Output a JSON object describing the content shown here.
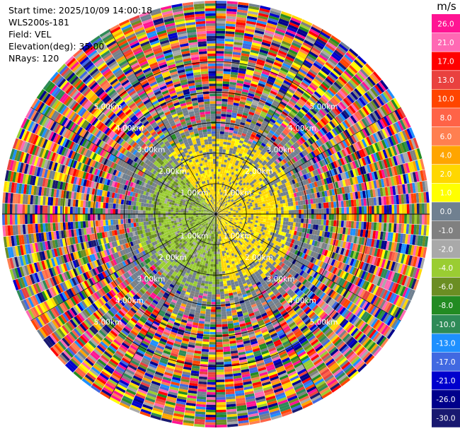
{
  "header": {
    "start_time": "Start time: 2025/10/09 14:00:18",
    "instrument": "WLS200s-181",
    "field": "Field: VEL",
    "elevation": "Elevation(deg): 35.00",
    "nrays": "NRays: 120"
  },
  "chart_data": {
    "type": "heatmap",
    "projection": "polar-ppi",
    "field": "VEL",
    "nrays": 120,
    "range_rings_km": [
      1.0,
      2.0,
      3.0,
      4.0,
      5.0
    ],
    "ring_labels": [
      "1.00km",
      "2.00km",
      "3.00km",
      "4.00km",
      "5.00km"
    ],
    "max_range_km": 7.0,
    "radial_spokes_deg": [
      0,
      30,
      60,
      90,
      120,
      150,
      180,
      210,
      240,
      270,
      300,
      330
    ],
    "colorbar": {
      "unit": "m/s",
      "ticks": [
        "26.0",
        "21.0",
        "17.0",
        "13.0",
        "10.0",
        "8.0",
        "6.0",
        "4.0",
        "2.0",
        "1.0",
        "0.0",
        "-1.0",
        "-2.0",
        "-4.0",
        "-6.0",
        "-8.0",
        "-10.0",
        "-13.0",
        "-17.0",
        "-21.0",
        "-26.0",
        "-30.0"
      ],
      "colors": [
        "#ff1493",
        "#ff69b4",
        "#ff0000",
        "#e9413f",
        "#ff4500",
        "#ff6347",
        "#ff7f50",
        "#ffa500",
        "#ffd700",
        "#ffff00",
        "#708090",
        "#808080",
        "#a9a9a9",
        "#9acd32",
        "#6b8e23",
        "#228b22",
        "#2e8b57",
        "#1e90ff",
        "#4169e1",
        "#0000cd",
        "#00008b",
        "#191970"
      ]
    },
    "pattern": {
      "negative_sector_deg": [
        175,
        320
      ],
      "positive_sector_deg": [
        320,
        175
      ],
      "coherent_range_km": 2.6,
      "noise_start_km": 3.6
    }
  }
}
